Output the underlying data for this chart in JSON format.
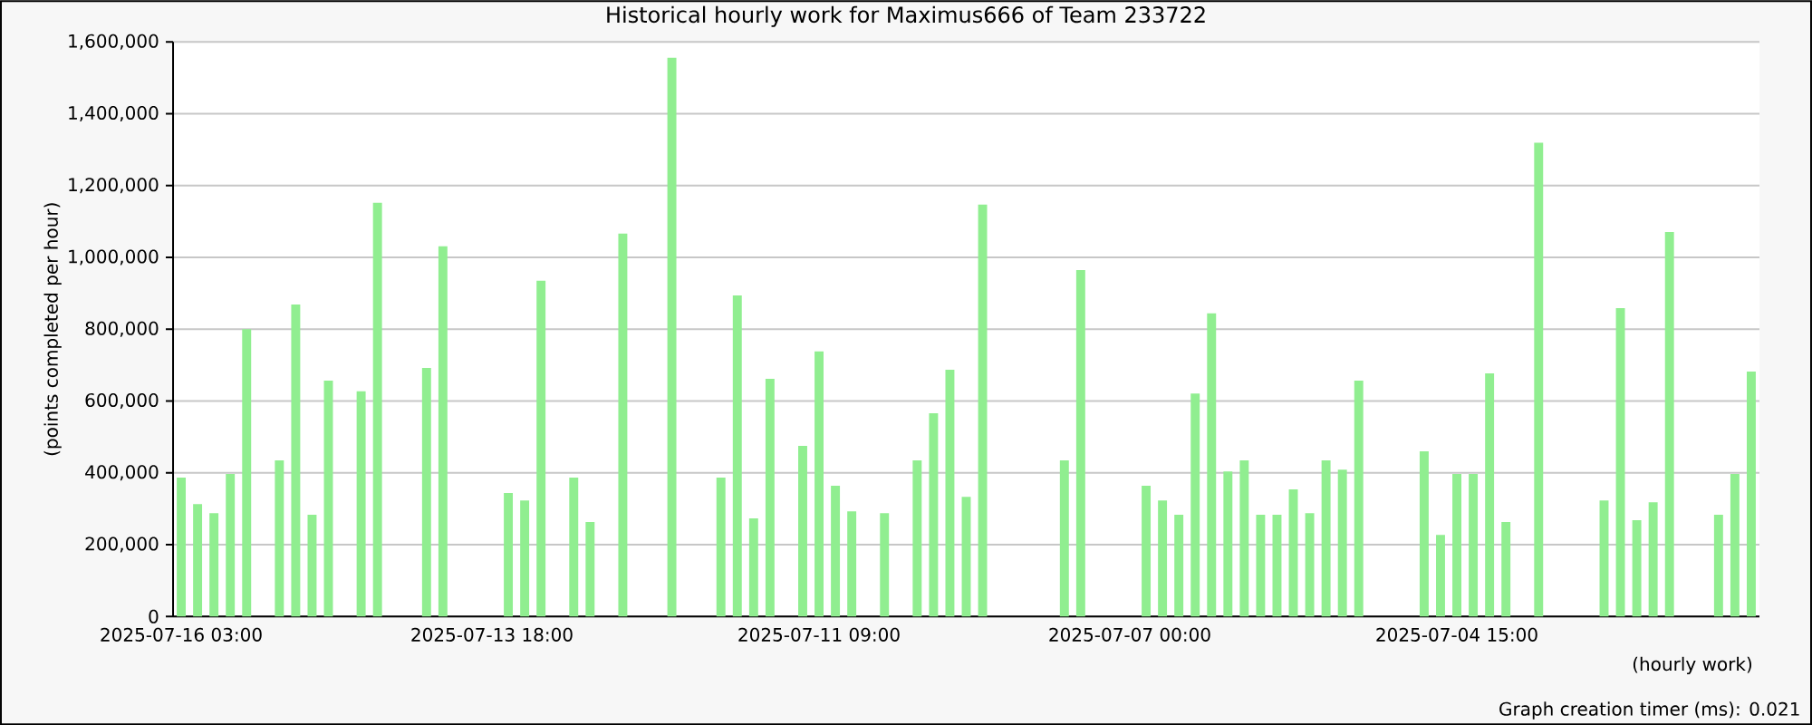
{
  "chart_data": {
    "type": "bar",
    "title": "Historical hourly work for Maximus666 of Team 233722",
    "xlabel": "(hourly work)",
    "ylabel": "(points completed per hour)",
    "categories": [
      "2025-07-16 03:00",
      null,
      null,
      null,
      null,
      null,
      null,
      null,
      null,
      null,
      null,
      null,
      null,
      null,
      null,
      null,
      null,
      null,
      null,
      "2025-07-13 18:00",
      null,
      null,
      null,
      null,
      null,
      null,
      null,
      null,
      null,
      null,
      null,
      null,
      null,
      null,
      null,
      null,
      null,
      null,
      null,
      "2025-07-11 09:00",
      null,
      null,
      null,
      null,
      null,
      null,
      null,
      null,
      null,
      null,
      null,
      null,
      null,
      null,
      null,
      null,
      null,
      null,
      "2025-07-07 00:00",
      null,
      null,
      null,
      null,
      null,
      null,
      null,
      null,
      null,
      null,
      null,
      null,
      null,
      null,
      null,
      null,
      null,
      null,
      null,
      "2025-07-04 15:00",
      null,
      null,
      null,
      null,
      null,
      null,
      null,
      null,
      null,
      null,
      null,
      null,
      null,
      null,
      null,
      null,
      null,
      null
    ],
    "values": [
      387000,
      313000,
      288000,
      397000,
      800000,
      null,
      435000,
      869000,
      283000,
      657000,
      null,
      627000,
      1152000,
      null,
      null,
      692000,
      1031000,
      null,
      null,
      null,
      344000,
      323000,
      935000,
      null,
      387000,
      263000,
      null,
      1066000,
      null,
      null,
      1556000,
      null,
      null,
      387000,
      894000,
      273000,
      662000,
      null,
      475000,
      738000,
      364000,
      293000,
      null,
      288000,
      null,
      435000,
      566000,
      687000,
      333000,
      1147000,
      null,
      null,
      null,
      null,
      435000,
      965000,
      null,
      null,
      null,
      364000,
      323000,
      283000,
      621000,
      844000,
      404000,
      435000,
      283000,
      283000,
      354000,
      288000,
      435000,
      409000,
      657000,
      null,
      null,
      null,
      460000,
      227000,
      397000,
      397000,
      677000,
      263000,
      null,
      1319000,
      null,
      null,
      null,
      323000,
      859000,
      268000,
      318000,
      1071000,
      null,
      null,
      283000,
      397000,
      682000
    ],
    "color": "#90ee90",
    "ylim": [
      0,
      1600000
    ],
    "yticks": [
      0,
      {
        "value": 200000,
        "label": "200,000"
      },
      {
        "value": 400000,
        "label": "400,000"
      },
      {
        "value": 600000,
        "label": "600,000"
      },
      {
        "value": 800000,
        "label": "800,000"
      },
      {
        "value": 1000000,
        "label": "1,000,000"
      },
      {
        "value": 1200000,
        "label": "1,200,000"
      },
      {
        "value": 1400000,
        "label": "1,400,000"
      },
      {
        "value": 1600000,
        "label": "1,600,000"
      }
    ],
    "grid": "y",
    "annotations": [
      "Graph creation timer (ms): 0.021"
    ]
  }
}
